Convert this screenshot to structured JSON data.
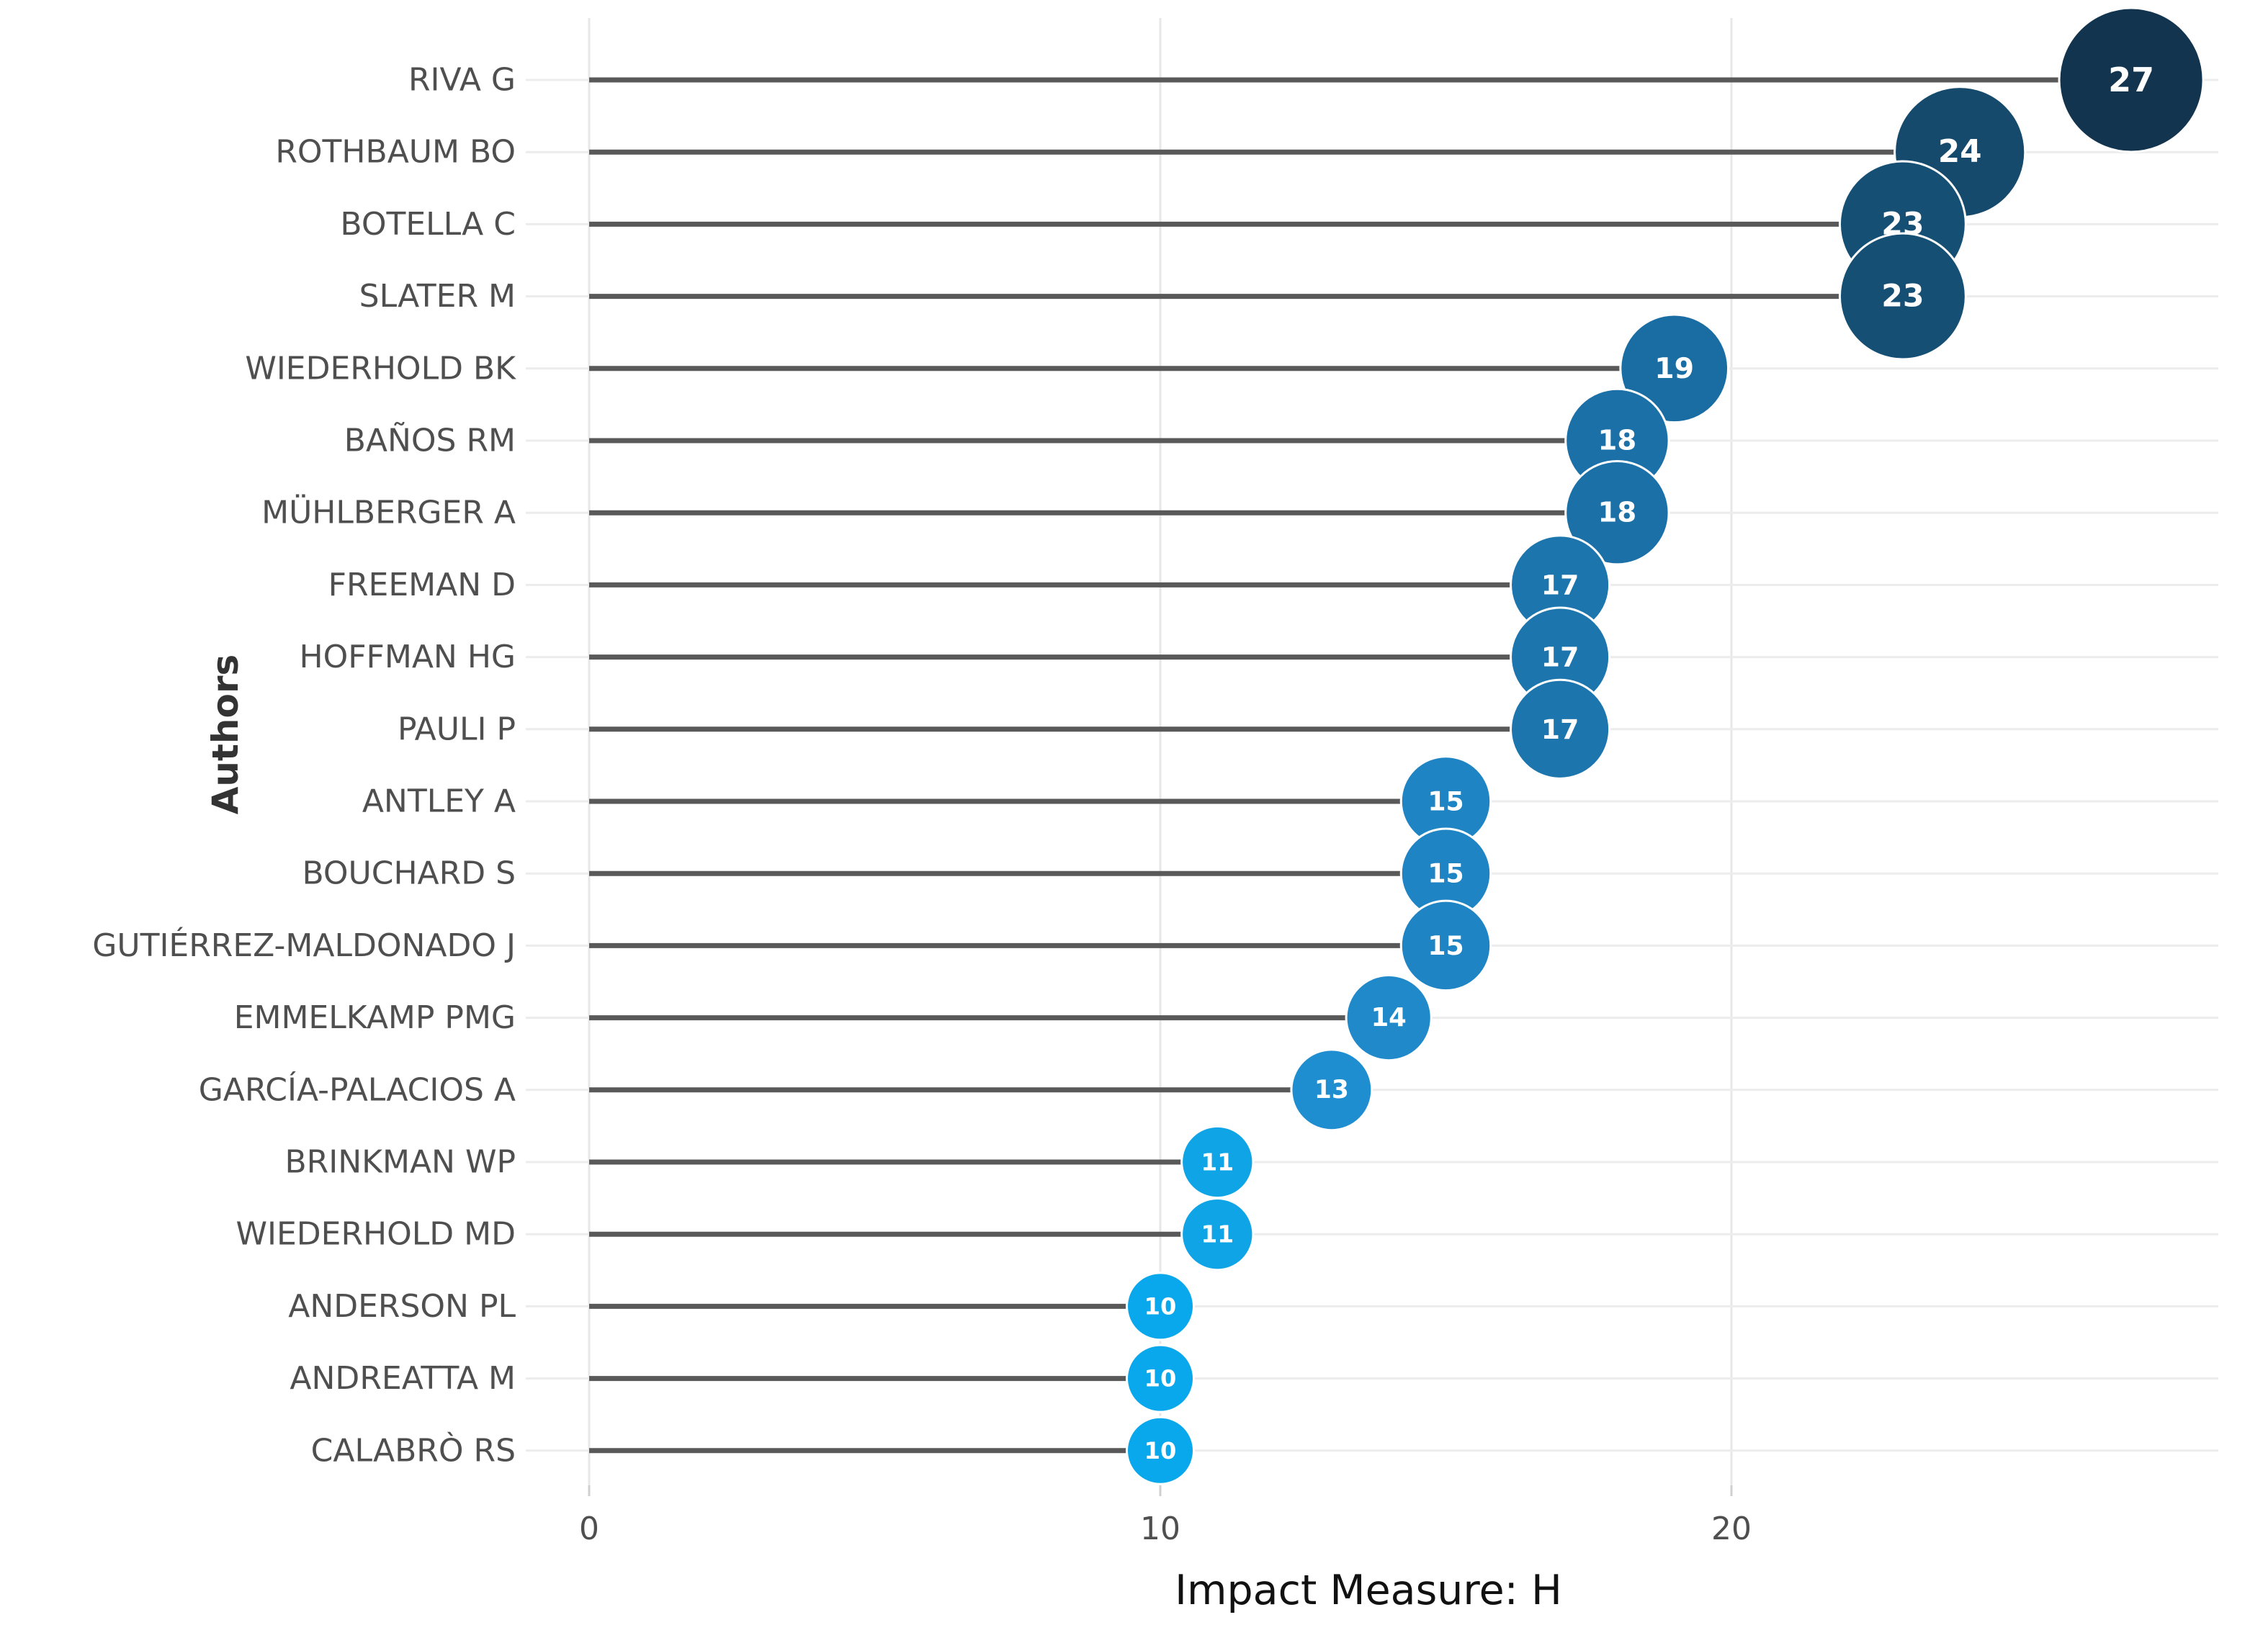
{
  "chart_data": {
    "type": "lollipop",
    "orientation": "horizontal",
    "title": "",
    "xlabel": "Impact Measure: H",
    "ylabel": "Authors",
    "x_ticks": [
      0,
      10,
      20
    ],
    "xlim": [
      0,
      29
    ],
    "grid": true,
    "legend_position": "none",
    "series": [
      {
        "author": "RIVA G",
        "value": 27,
        "color": "#12344e"
      },
      {
        "author": "ROTHBAUM BO",
        "value": 24,
        "color": "#154a6d"
      },
      {
        "author": "BOTELLA C",
        "value": 23,
        "color": "#164f74"
      },
      {
        "author": "SLATER M",
        "value": 23,
        "color": "#164f74"
      },
      {
        "author": "WIEDERHOLD BK",
        "value": 19,
        "color": "#1a6da3"
      },
      {
        "author": "BAÑOS RM",
        "value": 18,
        "color": "#1b71a7"
      },
      {
        "author": "MÜHLBERGER A",
        "value": 18,
        "color": "#1b71a7"
      },
      {
        "author": "FREEMAN D",
        "value": 17,
        "color": "#1c75ac"
      },
      {
        "author": "HOFFMAN HG",
        "value": 17,
        "color": "#1c75ac"
      },
      {
        "author": "PAULI P",
        "value": 17,
        "color": "#1c75ac"
      },
      {
        "author": "ANTLEY A",
        "value": 15,
        "color": "#1e84c3"
      },
      {
        "author": "BOUCHARD S",
        "value": 15,
        "color": "#1e84c3"
      },
      {
        "author": "GUTIÉRREZ-MALDONADO J",
        "value": 15,
        "color": "#1e84c3"
      },
      {
        "author": "EMMELKAMP PMG",
        "value": 14,
        "color": "#1f89c9"
      },
      {
        "author": "GARCÍA-PALACIOS A",
        "value": 13,
        "color": "#1f8ed0"
      },
      {
        "author": "BRINKMAN WP",
        "value": 11,
        "color": "#0ea4e6"
      },
      {
        "author": "WIEDERHOLD MD",
        "value": 11,
        "color": "#0ea4e6"
      },
      {
        "author": "ANDERSON PL",
        "value": 10,
        "color": "#09a7eb"
      },
      {
        "author": "ANDREATTA M",
        "value": 10,
        "color": "#09a7eb"
      },
      {
        "author": "CALABRÒ RS",
        "value": 10,
        "color": "#09a7eb"
      }
    ],
    "style_colors": {
      "stem": "#595959",
      "h_gridline": "#ececec",
      "v_gridline": "#e7e7e7",
      "tick_mark": "#d0d0d0",
      "author_label": "#4f4f4f",
      "tick_label": "#4f4f4f",
      "value_text": "#ffffff",
      "axis_title": "#111111",
      "y_title": "#333333",
      "bubble_outline": "#ffffff"
    }
  }
}
